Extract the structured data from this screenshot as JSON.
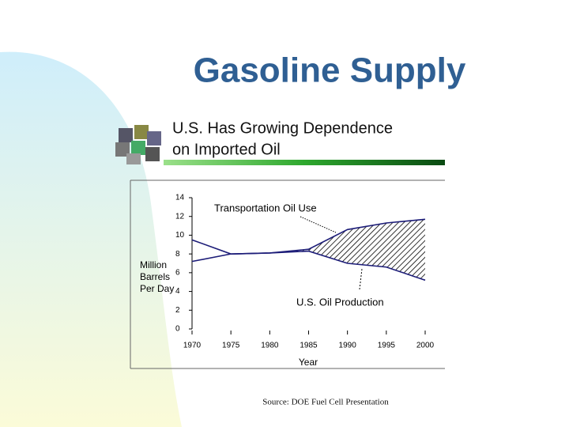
{
  "slide": {
    "title": "Gasoline Supply",
    "source": "Source: DOE Fuel Cell Presentation"
  },
  "chart_data": {
    "type": "line",
    "title": [
      "U.S. Has Growing Dependence",
      "on Imported Oil"
    ],
    "ylabel": [
      "Million",
      "Barrels",
      "Per Day"
    ],
    "xlabel": "Year",
    "x": [
      1970,
      1975,
      1980,
      1985,
      1990,
      1995,
      2000
    ],
    "series": [
      {
        "name": "Transportation Oil Use",
        "color": "#1c1c78",
        "values": [
          7.2,
          8.0,
          8.1,
          8.5,
          10.6,
          11.3,
          11.7
        ]
      },
      {
        "name": "U.S. Oil Production",
        "color": "#1c1c78",
        "values": [
          9.5,
          8.0,
          8.1,
          8.3,
          7.0,
          6.6,
          5.2
        ]
      }
    ],
    "xlim": [
      1970,
      2000
    ],
    "xticks": [
      1970,
      1975,
      1980,
      1985,
      1990,
      1995,
      2000
    ],
    "ylim": [
      0,
      14
    ],
    "yticks": [
      0,
      2,
      4,
      6,
      8,
      10,
      12,
      14
    ],
    "grid": false
  }
}
